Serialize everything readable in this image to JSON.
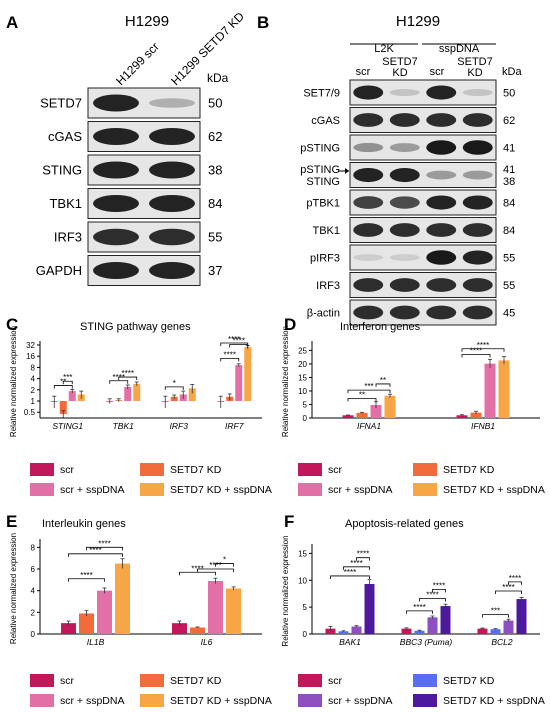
{
  "panels": {
    "A": {
      "letter": "A",
      "title": "H1299",
      "lanes": [
        "H1299 scr",
        "H1299 SETD7 KD"
      ],
      "unit": "kDa",
      "rows": [
        {
          "label": "SETD7",
          "kda": "50",
          "bands": [
            0.9,
            0.2
          ]
        },
        {
          "label": "cGAS",
          "kda": "62",
          "bands": [
            0.9,
            0.9
          ]
        },
        {
          "label": "STING",
          "kda": "38",
          "bands": [
            0.9,
            0.9
          ]
        },
        {
          "label": "TBK1",
          "kda": "84",
          "bands": [
            0.9,
            0.9
          ]
        },
        {
          "label": "IRF3",
          "kda": "55",
          "bands": [
            0.85,
            0.85
          ]
        },
        {
          "label": "GAPDH",
          "kda": "37",
          "bands": [
            0.9,
            0.9
          ]
        }
      ]
    },
    "B": {
      "letter": "B",
      "title": "H1299",
      "groups": [
        "L2K",
        "sspDNA"
      ],
      "lanes": [
        "scr",
        "SETD7 KD",
        "scr",
        "SETD7 KD"
      ],
      "unit": "kDa",
      "rows": [
        {
          "label": "SET7/9",
          "kda": "50",
          "bands": [
            0.9,
            0.1,
            0.9,
            0.1
          ]
        },
        {
          "label": "cGAS",
          "kda": "62",
          "bands": [
            0.85,
            0.85,
            0.85,
            0.85
          ]
        },
        {
          "label": "pSTING",
          "kda": "41",
          "bands": [
            0.35,
            0.3,
            0.95,
            0.95
          ]
        },
        {
          "label": "pSTING",
          "label2": "STING",
          "kda": "41",
          "kda2": "38",
          "bands": [
            0.9,
            0.9,
            0.3,
            0.3
          ]
        },
        {
          "label": "pTBK1",
          "kda": "84",
          "bands": [
            0.75,
            0.7,
            0.9,
            0.9
          ]
        },
        {
          "label": "TBK1",
          "kda": "84",
          "bands": [
            0.85,
            0.85,
            0.85,
            0.85
          ]
        },
        {
          "label": "pIRF3",
          "kda": "55",
          "bands": [
            0.05,
            0.05,
            0.95,
            0.9
          ]
        },
        {
          "label": "IRF3",
          "kda": "55",
          "bands": [
            0.85,
            0.85,
            0.85,
            0.85
          ]
        },
        {
          "label": "β-actin",
          "kda": "45",
          "bands": [
            0.85,
            0.85,
            0.85,
            0.85
          ]
        }
      ]
    }
  },
  "legend_labels": [
    "scr",
    "SETD7 KD",
    "scr + sspDNA",
    "SETD7 KD + sspDNA"
  ],
  "colors": {
    "scr": "#c2185b",
    "setd7_kd_orange": "#f26b3a",
    "scr_sspdna_pink": "#e26fa6",
    "setd7_kd_sspdna_orange": "#f7a545",
    "setd7_kd_blue": "#5a6cf0",
    "scr_sspdna_purple": "#8e4fc1",
    "setd7_kd_sspdna_purple": "#4d1a9e"
  },
  "chart_data": [
    {
      "panel": "C",
      "type": "bar",
      "title": "STING pathway genes",
      "ylabel": "Relative normalized expression",
      "yscale": "log2",
      "yticks": [
        "0.5",
        "1",
        "2",
        "4",
        "8",
        "16",
        "32"
      ],
      "ylim": [
        0.35,
        32
      ],
      "categories": [
        "STING1",
        "TBK1",
        "IRF3",
        "IRF7"
      ],
      "series": [
        {
          "name": "scr",
          "values": [
            1.0,
            1.0,
            1.0,
            1.0
          ],
          "errors": [
            0.35,
            0.15,
            0.35,
            0.35
          ]
        },
        {
          "name": "SETD7 KD",
          "values": [
            0.45,
            1.05,
            1.3,
            1.3
          ],
          "errors": [
            0.1,
            0.1,
            0.15,
            0.25
          ]
        },
        {
          "name": "scr + sspDNA",
          "values": [
            1.85,
            2.4,
            1.5,
            9.2
          ],
          "errors": [
            0.2,
            0.3,
            0.35,
            0.8
          ]
        },
        {
          "name": "SETD7 KD + sspDNA",
          "values": [
            1.5,
            2.9,
            2.2,
            28
          ],
          "errors": [
            0.35,
            0.35,
            0.6,
            3
          ]
        }
      ],
      "significance": [
        {
          "cat": 0,
          "from": 0,
          "to": 2,
          "label": "**",
          "y": 2.6
        },
        {
          "cat": 0,
          "from": 1,
          "to": 2,
          "label": "***",
          "y": 3.4
        },
        {
          "cat": 1,
          "from": 0,
          "to": 2,
          "label": "****",
          "y": 3.5
        },
        {
          "cat": 1,
          "from": 1,
          "to": 3,
          "label": "****",
          "y": 4.4
        },
        {
          "cat": 2,
          "from": 0,
          "to": 2,
          "label": "*",
          "y": 2.4
        },
        {
          "cat": 3,
          "from": 0,
          "to": 2,
          "label": "****",
          "y": 14
        },
        {
          "cat": 3,
          "from": 0,
          "to": 3,
          "label": "****",
          "y": 40
        },
        {
          "cat": 3,
          "from": 1,
          "to": 3,
          "label": "****",
          "y": 33
        }
      ]
    },
    {
      "panel": "D",
      "type": "bar",
      "title": "Interferon genes",
      "ylabel": "Relative normalized expression",
      "yscale": "linear",
      "yticks": [
        "0",
        "5",
        "10",
        "15",
        "20",
        "25"
      ],
      "ylim": [
        0,
        27
      ],
      "categories": [
        "IFNA1",
        "IFNB1"
      ],
      "series": [
        {
          "name": "scr",
          "values": [
            1.0,
            1.0
          ],
          "errors": [
            0.1,
            0.2
          ]
        },
        {
          "name": "SETD7 KD",
          "values": [
            1.9,
            2.0
          ],
          "errors": [
            0.2,
            0.5
          ]
        },
        {
          "name": "scr + sspDNA",
          "values": [
            4.8,
            20.1
          ],
          "errors": [
            1.2,
            1.6
          ]
        },
        {
          "name": "SETD7 KD + sspDNA",
          "values": [
            8.2,
            21.3
          ],
          "errors": [
            0.6,
            1.4
          ]
        }
      ],
      "significance": [
        {
          "cat": 0,
          "from": 0,
          "to": 2,
          "label": "**",
          "y": 7.2
        },
        {
          "cat": 0,
          "from": 0,
          "to": 3,
          "label": "***",
          "y": 10.3
        },
        {
          "cat": 0,
          "from": 2,
          "to": 3,
          "label": "**",
          "y": 12.6
        },
        {
          "cat": 1,
          "from": 0,
          "to": 2,
          "label": "****",
          "y": 23.5
        },
        {
          "cat": 1,
          "from": 0,
          "to": 3,
          "label": "****",
          "y": 25.6
        }
      ],
      "cross": {
        "from_cat": 0,
        "to_cat": 1,
        "label": "****",
        "y": 25.6
      }
    },
    {
      "panel": "E",
      "type": "bar",
      "title": "Interleukin genes",
      "ylabel": "Relative normalized expression",
      "yscale": "linear",
      "yticks": [
        "0",
        "2",
        "4",
        "6",
        "8"
      ],
      "ylim": [
        0,
        8.4
      ],
      "categories": [
        "IL1B",
        "IL6"
      ],
      "series": [
        {
          "name": "scr",
          "values": [
            1.0,
            1.0
          ],
          "errors": [
            0.2,
            0.2
          ]
        },
        {
          "name": "SETD7 KD",
          "values": [
            1.9,
            0.6
          ],
          "errors": [
            0.25,
            0.05
          ]
        },
        {
          "name": "scr + sspDNA",
          "values": [
            4.0,
            4.9
          ],
          "errors": [
            0.25,
            0.25
          ]
        },
        {
          "name": "SETD7 KD + sspDNA",
          "values": [
            6.5,
            4.2
          ],
          "errors": [
            0.45,
            0.15
          ]
        }
      ],
      "significance": [
        {
          "cat": 0,
          "from": 0,
          "to": 2,
          "label": "****",
          "y": 5.1
        },
        {
          "cat": 0,
          "from": 0,
          "to": 3,
          "label": "****",
          "y": 7.4
        },
        {
          "cat": 0,
          "from": 1,
          "to": 3,
          "label": "****",
          "y": 8.0
        },
        {
          "cat": 1,
          "from": 0,
          "to": 2,
          "label": "****",
          "y": 5.7
        },
        {
          "cat": 1,
          "from": 1,
          "to": 3,
          "label": "****",
          "y": 6.0
        },
        {
          "cat": 1,
          "from": 2,
          "to": 3,
          "label": "*",
          "y": 6.5
        }
      ]
    },
    {
      "panel": "F",
      "type": "bar",
      "title": "Apoptosis-related genes",
      "ylabel": "Relative normalized expression",
      "yscale": "linear",
      "yticks": [
        "0",
        "5",
        "10",
        "15"
      ],
      "ylim": [
        0,
        16
      ],
      "categories": [
        "BAK1",
        "BBC3 (Puma)",
        "BCL2"
      ],
      "series": [
        {
          "name": "scr",
          "values": [
            1.0,
            1.0,
            1.0
          ],
          "errors": [
            0.4,
            0.15,
            0.1
          ]
        },
        {
          "name": "SETD7 KD",
          "values": [
            0.5,
            0.6,
            0.9
          ],
          "errors": [
            0.1,
            0.1,
            0.1
          ]
        },
        {
          "name": "scr + sspDNA",
          "values": [
            1.4,
            3.1,
            2.5
          ],
          "errors": [
            0.15,
            0.25,
            0.25
          ]
        },
        {
          "name": "SETD7 KD + sspDNA",
          "values": [
            9.3,
            5.2,
            6.5
          ],
          "errors": [
            0.8,
            0.35,
            0.3
          ]
        }
      ],
      "significance": [
        {
          "cat": 0,
          "from": 0,
          "to": 3,
          "label": "****",
          "y": 10.8
        },
        {
          "cat": 0,
          "from": 1,
          "to": 3,
          "label": "****",
          "y": 12.5
        },
        {
          "cat": 0,
          "from": 2,
          "to": 3,
          "label": "****",
          "y": 14.2
        },
        {
          "cat": 1,
          "from": 0,
          "to": 2,
          "label": "****",
          "y": 4.3
        },
        {
          "cat": 1,
          "from": 1,
          "to": 3,
          "label": "****",
          "y": 6.6
        },
        {
          "cat": 1,
          "from": 2,
          "to": 3,
          "label": "****",
          "y": 8.3
        },
        {
          "cat": 2,
          "from": 0,
          "to": 2,
          "label": "***",
          "y": 3.6
        },
        {
          "cat": 2,
          "from": 1,
          "to": 3,
          "label": "****",
          "y": 8.0
        },
        {
          "cat": 2,
          "from": 2,
          "to": 3,
          "label": "****",
          "y": 9.7
        }
      ]
    }
  ]
}
